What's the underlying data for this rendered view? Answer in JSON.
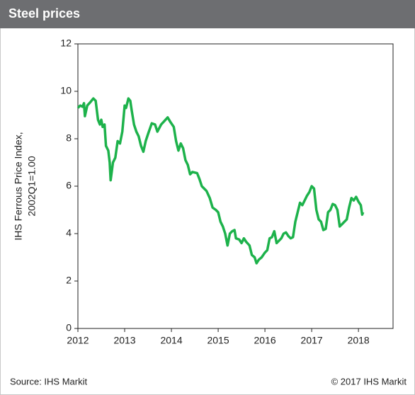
{
  "chart_data": {
    "type": "line",
    "title": "Steel prices",
    "ylabel": [
      "IHS Ferrous Price Index,",
      "2002Q1=1.00"
    ],
    "source": "Source: IHS Markit",
    "copyright": "© 2017 IHS Markit",
    "xlim": [
      2012,
      2018.74
    ],
    "xticks": [
      2012,
      2013,
      2014,
      2015,
      2016,
      2017,
      2018
    ],
    "ylim": [
      0,
      12
    ],
    "yticks": [
      0,
      2,
      4,
      6,
      8,
      10,
      12
    ],
    "grid": false,
    "x": [
      2012.0,
      2012.05,
      2012.1,
      2012.13,
      2012.15,
      2012.2,
      2012.27,
      2012.33,
      2012.38,
      2012.43,
      2012.47,
      2012.5,
      2012.53,
      2012.57,
      2012.6,
      2012.65,
      2012.68,
      2012.7,
      2012.75,
      2012.8,
      2012.85,
      2012.9,
      2012.95,
      2013.0,
      2013.03,
      2013.08,
      2013.12,
      2013.15,
      2013.2,
      2013.25,
      2013.3,
      2013.35,
      2013.4,
      2013.45,
      2013.5,
      2013.58,
      2013.65,
      2013.7,
      2013.78,
      2013.85,
      2013.92,
      2013.98,
      2014.05,
      2014.1,
      2014.15,
      2014.2,
      2014.25,
      2014.3,
      2014.35,
      2014.4,
      2014.45,
      2014.55,
      2014.6,
      2014.65,
      2014.7,
      2014.75,
      2014.82,
      2014.88,
      2014.95,
      2015.0,
      2015.05,
      2015.1,
      2015.15,
      2015.2,
      2015.25,
      2015.3,
      2015.35,
      2015.38,
      2015.45,
      2015.5,
      2015.55,
      2015.6,
      2015.67,
      2015.72,
      2015.78,
      2015.82,
      2015.87,
      2015.93,
      2016.0,
      2016.05,
      2016.1,
      2016.15,
      2016.2,
      2016.25,
      2016.3,
      2016.35,
      2016.4,
      2016.45,
      2016.5,
      2016.55,
      2016.6,
      2016.65,
      2016.7,
      2016.75,
      2016.8,
      2016.85,
      2016.9,
      2016.95,
      2017.0,
      2017.05,
      2017.1,
      2017.15,
      2017.2,
      2017.25,
      2017.3,
      2017.35,
      2017.4,
      2017.45,
      2017.5,
      2017.55,
      2017.6,
      2017.65,
      2017.7,
      2017.75,
      2017.8,
      2017.85,
      2017.9,
      2017.95,
      2018.0,
      2018.05,
      2018.08,
      2018.1
    ],
    "series": [
      {
        "name": "IHS Ferrous Price Index",
        "color": "#1db24b",
        "values": [
          9.3,
          9.4,
          9.35,
          9.5,
          8.95,
          9.4,
          9.55,
          9.7,
          9.6,
          8.8,
          8.6,
          8.8,
          8.5,
          8.6,
          7.7,
          7.5,
          7.0,
          6.25,
          7.0,
          7.2,
          7.9,
          7.8,
          8.3,
          9.4,
          9.3,
          9.7,
          9.6,
          9.2,
          8.6,
          8.3,
          8.1,
          7.7,
          7.45,
          7.9,
          8.2,
          8.65,
          8.6,
          8.3,
          8.6,
          8.75,
          8.9,
          8.7,
          8.5,
          7.9,
          7.5,
          7.8,
          7.6,
          7.1,
          6.9,
          6.5,
          6.6,
          6.55,
          6.3,
          6.0,
          5.9,
          5.8,
          5.5,
          5.1,
          5.0,
          4.9,
          4.5,
          4.3,
          4.0,
          3.5,
          4.0,
          4.1,
          4.15,
          3.8,
          3.75,
          3.6,
          3.8,
          3.65,
          3.5,
          3.1,
          3.0,
          2.75,
          2.9,
          3.0,
          3.2,
          3.3,
          3.8,
          3.85,
          4.1,
          3.6,
          3.7,
          3.8,
          4.0,
          4.05,
          3.9,
          3.8,
          3.85,
          4.5,
          4.9,
          5.3,
          5.2,
          5.4,
          5.6,
          5.75,
          6.0,
          5.9,
          5.0,
          4.6,
          4.5,
          4.15,
          4.2,
          4.9,
          5.0,
          5.25,
          5.2,
          5.0,
          4.3,
          4.4,
          4.5,
          4.6,
          5.1,
          5.5,
          5.4,
          5.55,
          5.35,
          5.2,
          4.8,
          4.9
        ]
      }
    ]
  }
}
